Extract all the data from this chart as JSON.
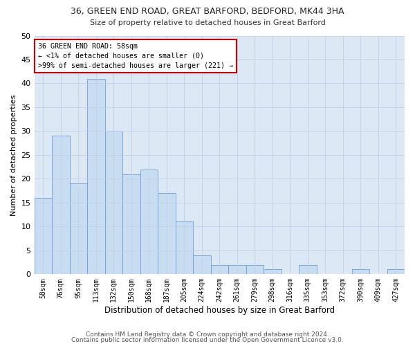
{
  "title1": "36, GREEN END ROAD, GREAT BARFORD, BEDFORD, MK44 3HA",
  "title2": "Size of property relative to detached houses in Great Barford",
  "xlabel": "Distribution of detached houses by size in Great Barford",
  "ylabel": "Number of detached properties",
  "categories": [
    "58sqm",
    "76sqm",
    "95sqm",
    "113sqm",
    "132sqm",
    "150sqm",
    "168sqm",
    "187sqm",
    "205sqm",
    "224sqm",
    "242sqm",
    "261sqm",
    "279sqm",
    "298sqm",
    "316sqm",
    "335sqm",
    "353sqm",
    "372sqm",
    "390sqm",
    "409sqm",
    "427sqm"
  ],
  "values": [
    16,
    29,
    19,
    41,
    30,
    21,
    22,
    17,
    11,
    4,
    2,
    2,
    2,
    1,
    0,
    2,
    0,
    0,
    1,
    0,
    1
  ],
  "bar_color": "#c9ddf2",
  "bar_edge_color": "#6a9fd8",
  "annotation_title": "36 GREEN END ROAD: 58sqm",
  "annotation_line1": "← <1% of detached houses are smaller (0)",
  "annotation_line2": ">99% of semi-detached houses are larger (221) →",
  "annotation_box_color": "#ffffff",
  "annotation_box_edge": "#cc0000",
  "ylim": [
    0,
    50
  ],
  "yticks": [
    0,
    5,
    10,
    15,
    20,
    25,
    30,
    35,
    40,
    45,
    50
  ],
  "footnote1": "Contains HM Land Registry data © Crown copyright and database right 2024.",
  "footnote2": "Contains public sector information licensed under the Open Government Licence v3.0.",
  "bg_color": "#ffffff",
  "plot_bg_color": "#dde8f5",
  "grid_color": "#bfcfe8"
}
